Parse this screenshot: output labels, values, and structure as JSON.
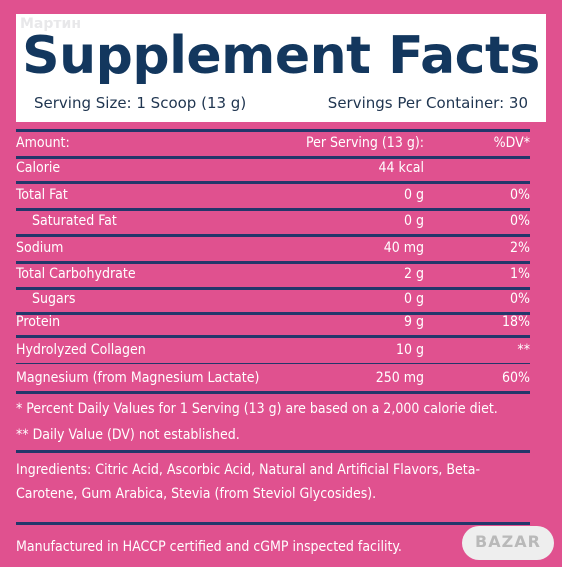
{
  "header": {
    "watermark": "Мартин",
    "title": "Supplement Facts",
    "serving_size": "Serving Size: 1 Scoop (13 g)",
    "servings_per_container": "Servings Per Container: 30"
  },
  "table": {
    "header": {
      "label": "Amount:",
      "amount": "Per Serving (13 g):",
      "dv": "%DV*"
    },
    "rows": [
      {
        "label": "Calorie",
        "amount": "44 kcal",
        "dv": ""
      },
      {
        "label": "Total Fat",
        "amount": "0 g",
        "dv": "0%"
      },
      {
        "label": "Saturated Fat",
        "amount": "0 g",
        "dv": "0%"
      },
      {
        "label": "Sodium",
        "amount": "40 mg",
        "dv": "2%"
      },
      {
        "label": "Total Carbohydrate",
        "amount": "2 g",
        "dv": "1%"
      },
      {
        "label": "Sugars",
        "amount": "0 g",
        "dv": "0%"
      },
      {
        "label": "Protein",
        "amount": "9 g",
        "dv": "18%"
      },
      {
        "label": "Hydrolyzed Collagen",
        "amount": "10 g",
        "dv": "**"
      },
      {
        "label": "Magnesium (from Magnesium Lactate)",
        "amount": "250 mg",
        "dv": "60%"
      }
    ]
  },
  "footnotes": {
    "percent_dv": "* Percent Daily Values for 1 Serving (13 g) are based on a 2,000 calorie diet.",
    "not_established": "** Daily Value (DV) not established."
  },
  "ingredients": "Ingredients: Citric Acid, Ascorbic Acid, Natural and Artificial Flavors, Beta-Carotene, Gum Arabica, Stevia (from Steviol Glycosides).",
  "manufacturing": "Manufactured in HACCP certified and cGMP inspected facility.",
  "logo": {
    "text": "BAZAR"
  }
}
